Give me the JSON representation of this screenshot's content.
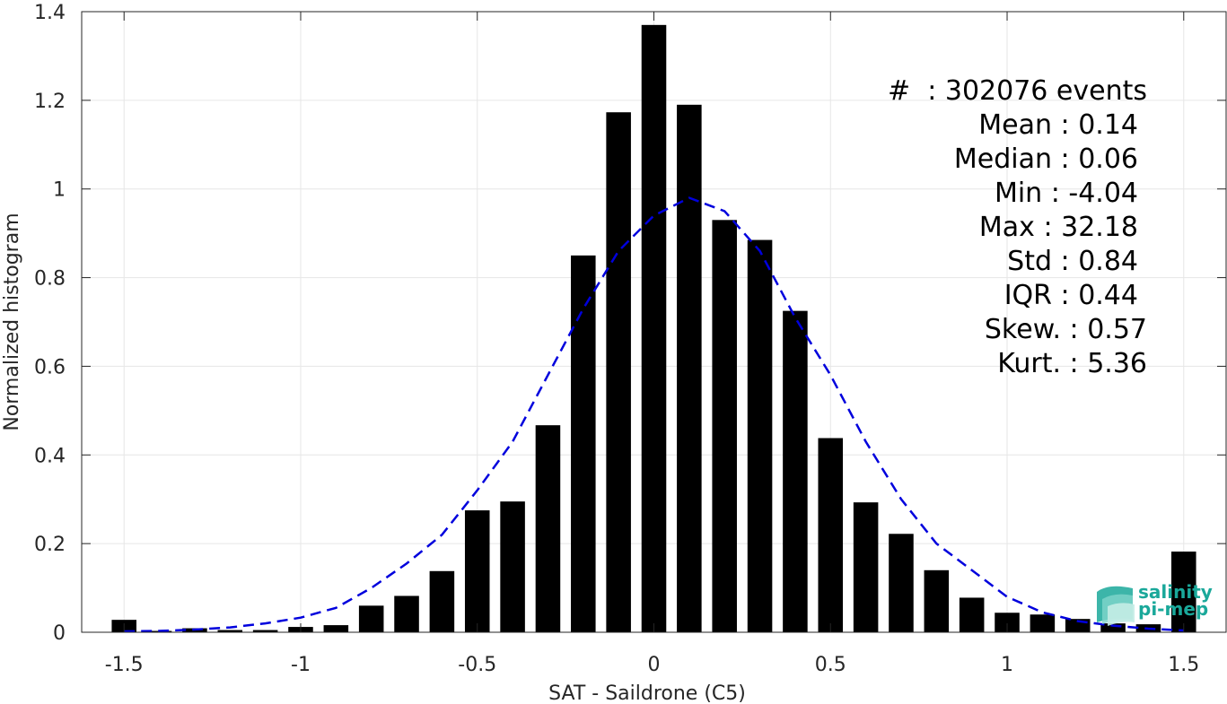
{
  "chart_data": {
    "type": "bar",
    "xlabel": "SAT - Saildrone (C5)",
    "ylabel": "Normalized histogram",
    "xlim": [
      -1.62,
      1.62
    ],
    "ylim": [
      0,
      1.4
    ],
    "xticks": [
      -1.5,
      -1,
      -0.5,
      0,
      0.5,
      1,
      1.5
    ],
    "xtick_labels": [
      "-1.5",
      "-1",
      "-0.5",
      "0",
      "0.5",
      "1",
      "1.5"
    ],
    "yticks": [
      0,
      0.2,
      0.4,
      0.6,
      0.8,
      1,
      1.2,
      1.4
    ],
    "ytick_labels": [
      "0",
      "0.2",
      "0.4",
      "0.6",
      "0.8",
      "1",
      "1.2",
      "1.4"
    ],
    "grid": true,
    "bar_width": 0.07,
    "bars": {
      "x": [
        -1.5,
        -1.4,
        -1.3,
        -1.2,
        -1.1,
        -1.0,
        -0.9,
        -0.8,
        -0.7,
        -0.6,
        -0.5,
        -0.4,
        -0.3,
        -0.2,
        -0.1,
        0.0,
        0.1,
        0.2,
        0.3,
        0.4,
        0.5,
        0.6,
        0.7,
        0.8,
        0.9,
        1.0,
        1.1,
        1.2,
        1.3,
        1.4,
        1.5
      ],
      "y": [
        0.028,
        0.003,
        0.009,
        0.005,
        0.005,
        0.012,
        0.016,
        0.06,
        0.082,
        0.138,
        0.275,
        0.295,
        0.467,
        0.85,
        1.173,
        1.37,
        1.19,
        0.93,
        0.885,
        0.725,
        0.438,
        0.293,
        0.222,
        0.14,
        0.078,
        0.044,
        0.04,
        0.03,
        0.02,
        0.018,
        0.182
      ],
      "color": "#000000"
    },
    "fit_curve": {
      "style": "dashed",
      "color": "#0000dd",
      "x": [
        -1.5,
        -1.4,
        -1.3,
        -1.2,
        -1.1,
        -1.0,
        -0.9,
        -0.8,
        -0.7,
        -0.6,
        -0.5,
        -0.4,
        -0.3,
        -0.2,
        -0.1,
        0.0,
        0.1,
        0.2,
        0.3,
        0.4,
        0.5,
        0.6,
        0.7,
        0.8,
        0.9,
        1.0,
        1.1,
        1.2,
        1.3,
        1.4,
        1.5
      ],
      "y": [
        0.002,
        0.003,
        0.006,
        0.011,
        0.02,
        0.033,
        0.055,
        0.1,
        0.155,
        0.22,
        0.32,
        0.43,
        0.58,
        0.73,
        0.86,
        0.94,
        0.98,
        0.95,
        0.86,
        0.71,
        0.58,
        0.43,
        0.3,
        0.2,
        0.14,
        0.08,
        0.045,
        0.025,
        0.015,
        0.008,
        0.004
      ]
    }
  },
  "stats": [
    {
      "label": "#  : 302076 events"
    },
    {
      "label": "Mean : 0.14"
    },
    {
      "label": "Median : 0.06"
    },
    {
      "label": "Min : -4.04"
    },
    {
      "label": "Max : 32.18"
    },
    {
      "label": "Std : 0.84"
    },
    {
      "label": "IQR : 0.44"
    },
    {
      "label": "Skew. : 0.57"
    },
    {
      "label": "Kurt. : 5.36"
    }
  ],
  "logo": {
    "line1": "salinity",
    "line2": "pi-mep",
    "color": "#1aa89a"
  }
}
